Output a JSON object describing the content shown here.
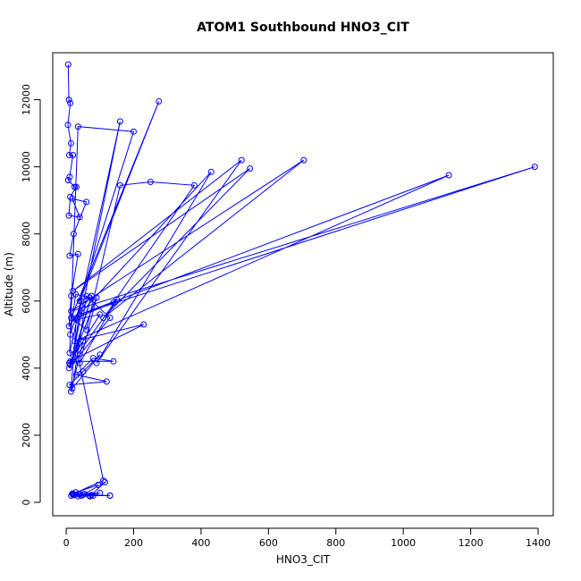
{
  "chart_data": {
    "type": "line",
    "title": "ATOM1 Southbound HNO3_CIT",
    "xlabel": "HNO3_CIT",
    "ylabel": "Altitude (m)",
    "xlim": [
      -40,
      1445
    ],
    "ylim": [
      -400,
      13400
    ],
    "xticks": [
      0,
      200,
      400,
      600,
      800,
      1000,
      1200,
      1400
    ],
    "yticks": [
      0,
      2000,
      4000,
      6000,
      8000,
      10000,
      12000
    ],
    "grid": false,
    "legend": "none",
    "marker": "open-circle",
    "color": "#0000ff",
    "series": [
      {
        "x": [
          6,
          8,
          12,
          5,
          14,
          9,
          20,
          10,
          6,
          25,
          30,
          12,
          8,
          40,
          18,
          60,
          22,
          10,
          35,
          15,
          8,
          70,
          28,
          12,
          45,
          18,
          9,
          100,
          30,
          14,
          50,
          20,
          160,
          10,
          35,
          200,
          40,
          275,
          15,
          60,
          160,
          250,
          380,
          140,
          30,
          430,
          90,
          520,
          20,
          545,
          110,
          705,
          15,
          1390,
          40,
          1135,
          25,
          230,
          12,
          140,
          80,
          30,
          120,
          10,
          50,
          100,
          18,
          60,
          130,
          8,
          90,
          40,
          150,
          12,
          75,
          30,
          110,
          20,
          45,
          70,
          15,
          25,
          55,
          35,
          100,
          20,
          75,
          130,
          40,
          18,
          95,
          28,
          70,
          115,
          50,
          22,
          80,
          130,
          38,
          25
        ],
        "y": [
          13050,
          12000,
          11900,
          11250,
          10700,
          10350,
          10350,
          9700,
          9600,
          9400,
          9400,
          9100,
          8550,
          8500,
          9050,
          8950,
          8000,
          7350,
          7400,
          6150,
          5250,
          6100,
          6200,
          5000,
          6000,
          4200,
          4150,
          5600,
          5450,
          3300,
          4800,
          4400,
          11350,
          4450,
          11200,
          11050,
          6000,
          11950,
          5500,
          5150,
          9450,
          9550,
          9450,
          5950,
          5500,
          9850,
          4150,
          10200,
          6300,
          9950,
          5500,
          10200,
          5700,
          10000,
          5600,
          9750,
          4800,
          5300,
          4200,
          4200,
          4300,
          3800,
          3600,
          3500,
          3900,
          4400,
          3400,
          6150,
          5500,
          4000,
          6100,
          4150,
          6050,
          4100,
          6150,
          4600,
          650,
          250,
          200,
          200,
          200,
          220,
          250,
          180,
          280,
          230,
          220,
          200,
          240,
          260,
          520,
          300,
          180,
          600,
          230,
          250,
          200,
          200,
          240,
          220
        ]
      }
    ]
  }
}
